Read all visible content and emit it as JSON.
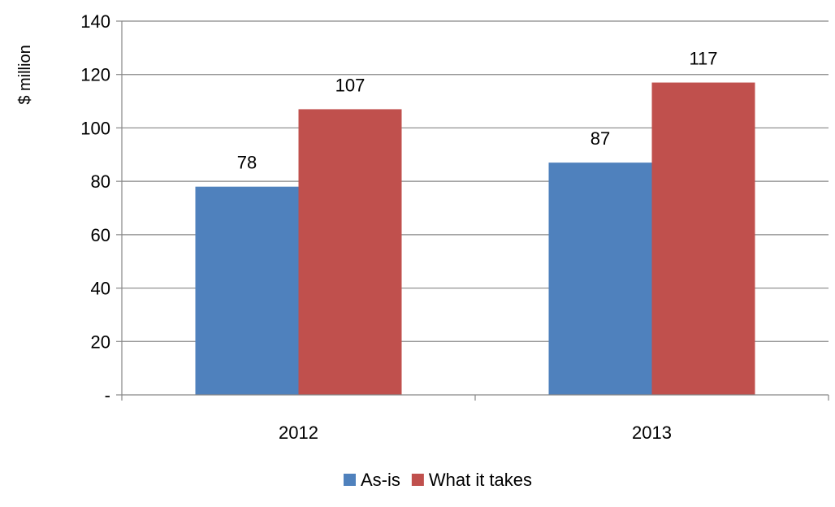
{
  "chart_data": {
    "type": "bar",
    "title": "",
    "xlabel": "",
    "ylabel": "$ million",
    "ylim": [
      0,
      140
    ],
    "ytick_step": 20,
    "ytick_labels": [
      "-",
      "20",
      "40",
      "60",
      "80",
      "100",
      "120",
      "140"
    ],
    "categories": [
      "2012",
      "2013"
    ],
    "series": [
      {
        "name": "As-is",
        "values": [
          78,
          87
        ],
        "color": "#4F81BD"
      },
      {
        "name": "What it takes",
        "values": [
          107,
          117
        ],
        "color": "#C0504D"
      }
    ],
    "data_labels": true,
    "grid": true,
    "legend": "bottom-center"
  }
}
